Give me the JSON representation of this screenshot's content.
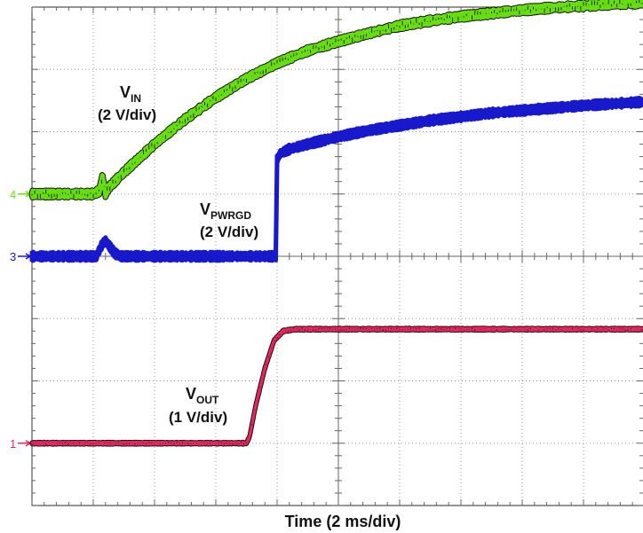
{
  "chart_data": {
    "type": "line",
    "xlabel": "Time (2 ms/div)",
    "ylabel": "",
    "grid": true,
    "divisions": {
      "x": 10,
      "y": 8
    },
    "xlim": [
      0,
      10
    ],
    "ylim": [
      0,
      8
    ],
    "series": [
      {
        "name": "IN",
        "label_main": "V",
        "label_sub": "IN",
        "scale": "(2 V/div)",
        "channel": "4",
        "color": "#66dd11",
        "edge_color": "#111111",
        "ref_level": 5.0,
        "x": [
          0,
          1.0,
          1.1,
          1.15,
          1.2,
          1.25,
          1.5,
          2.0,
          2.5,
          3.0,
          3.5,
          4.0,
          4.5,
          5.0,
          5.5,
          6.0,
          6.5,
          7.0,
          7.5,
          8.0,
          8.5,
          9.0,
          9.5,
          10.0
        ],
        "y": [
          5.0,
          5.0,
          5.05,
          5.3,
          5.0,
          5.1,
          5.35,
          5.8,
          6.2,
          6.55,
          6.85,
          7.1,
          7.3,
          7.45,
          7.58,
          7.7,
          7.78,
          7.85,
          7.9,
          7.95,
          7.99,
          8.02,
          8.05,
          8.07
        ]
      },
      {
        "name": "PWRGD",
        "label_main": "V",
        "label_sub": "PWRGD",
        "scale": "(2 V/div)",
        "channel": "3",
        "color": "#1818cc",
        "edge_color": "#1818cc",
        "ref_level": 4.0,
        "x": [
          0,
          1.05,
          1.15,
          1.2,
          1.35,
          1.45,
          3.98,
          4.0,
          4.05,
          4.2,
          4.5,
          5.0,
          5.5,
          6.0,
          6.5,
          7.0,
          7.5,
          8.0,
          8.5,
          9.0,
          9.5,
          10.0
        ],
        "y": [
          4.0,
          4.0,
          4.2,
          4.25,
          4.05,
          4.0,
          4.0,
          5.55,
          5.65,
          5.72,
          5.8,
          5.92,
          6.02,
          6.1,
          6.18,
          6.24,
          6.3,
          6.34,
          6.38,
          6.42,
          6.45,
          6.48
        ]
      },
      {
        "name": "OUT",
        "label_main": "V",
        "label_sub": "OUT",
        "scale": "(1 V/div)",
        "channel": "1",
        "color": "#e8265e",
        "edge_color": "#111111",
        "ref_level": 1.0,
        "x": [
          0,
          3.5,
          3.55,
          3.65,
          3.8,
          3.95,
          4.1,
          4.3,
          4.45,
          10.0
        ],
        "y": [
          1.0,
          1.0,
          1.1,
          1.6,
          2.2,
          2.65,
          2.8,
          2.83,
          2.83,
          2.83
        ]
      }
    ]
  }
}
